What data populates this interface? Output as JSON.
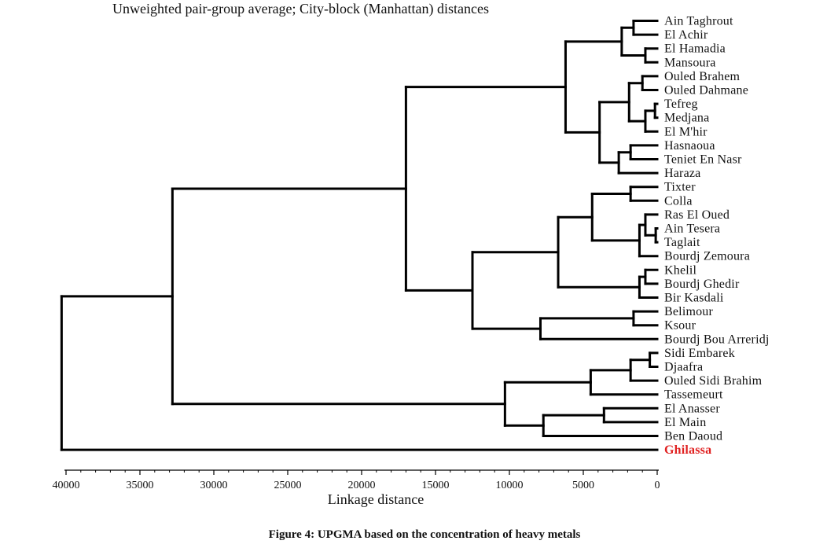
{
  "chart_data": {
    "type": "dendrogram",
    "title": "Unweighted pair-group average; City-block (Manhattan) distances",
    "xlabel": "Linkage distance",
    "xlim": [
      40000,
      0
    ],
    "x_ticks": [
      40000,
      35000,
      30000,
      25000,
      20000,
      15000,
      10000,
      5000,
      0
    ],
    "leaves": [
      "Ain Taghrout",
      "El Achir",
      "El Hamadia",
      "Mansoura",
      "Ouled Brahem",
      "Ouled Dahmane",
      "Tefreg",
      "Medjana",
      "El M'hir",
      "Hasnaoua",
      "Teniet En Nasr",
      "Haraza",
      "Tixter",
      "Colla",
      "Ras El Oued",
      "Ain Tesera",
      "Taglait",
      "Bourdj Zemoura",
      "Khelil",
      "Bourdj Ghedir",
      "Bir Kasdali",
      "Belimour",
      "Ksour",
      "Bourdj Bou Arreridj",
      "Sidi Embarek",
      "Djaafra",
      "Ouled Sidi Brahim",
      "Tassemeurt",
      "El Anasser",
      "El Main",
      "Ben Daoud",
      "Ghilassa"
    ],
    "highlighted_leaf": "Ghilassa",
    "highlight_color": "#e02020",
    "line_color": "#000000",
    "merges": [
      {
        "a": "Ain Taghrout",
        "b": "El Achir",
        "height": 1600
      },
      {
        "a": "El Hamadia",
        "b": "Mansoura",
        "height": 800
      },
      {
        "a": "Ouled Brahem",
        "b": "Ouled Dahmane",
        "height": 1000
      },
      {
        "a": "Tefreg",
        "b": "Medjana",
        "height": 150
      },
      {
        "a": 3,
        "b": "El M'hir",
        "height": 800
      },
      {
        "a": 2,
        "b": 4,
        "height": 1900
      },
      {
        "a": "Hasnaoua",
        "b": "Teniet En Nasr",
        "height": 1800
      },
      {
        "a": 6,
        "b": "Haraza",
        "height": 2600
      },
      {
        "a": 5,
        "b": 7,
        "height": 3900
      },
      {
        "a": 0,
        "b": 1,
        "height": 2400
      },
      {
        "a": 9,
        "b": 8,
        "height": 6200
      },
      {
        "a": "Tixter",
        "b": "Colla",
        "height": 1800
      },
      {
        "a": "Ain Tesera",
        "b": "Taglait",
        "height": 100
      },
      {
        "a": "Ras El Oued",
        "b": 12,
        "height": 800
      },
      {
        "a": 13,
        "b": "Bourdj Zemoura",
        "height": 1200
      },
      {
        "a": 11,
        "b": 14,
        "height": 4400
      },
      {
        "a": "Khelil",
        "b": "Bourdj Ghedir",
        "height": 800
      },
      {
        "a": 16,
        "b": "Bir Kasdali",
        "height": 1200
      },
      {
        "a": 15,
        "b": 17,
        "height": 6700
      },
      {
        "a": "Belimour",
        "b": "Ksour",
        "height": 1600
      },
      {
        "a": 19,
        "b": "Bourdj Bou Arreridj",
        "height": 7900
      },
      {
        "a": 18,
        "b": 20,
        "height": 12500
      },
      {
        "a": 10,
        "b": 21,
        "height": 17000
      },
      {
        "a": "Sidi Embarek",
        "b": "Djaafra",
        "height": 500
      },
      {
        "a": 23,
        "b": "Ouled Sidi Brahim",
        "height": 1800
      },
      {
        "a": 24,
        "b": "Tassemeurt",
        "height": 4500
      },
      {
        "a": "El Anasser",
        "b": "El Main",
        "height": 3600
      },
      {
        "a": 26,
        "b": "Ben Daoud",
        "height": 7700
      },
      {
        "a": 25,
        "b": 27,
        "height": 10300
      },
      {
        "a": 22,
        "b": 28,
        "height": 32800
      },
      {
        "a": 29,
        "b": "Ghilassa",
        "height": 40300
      }
    ]
  },
  "caption": "Figure 4: UPGMA based on the concentration of heavy metals"
}
